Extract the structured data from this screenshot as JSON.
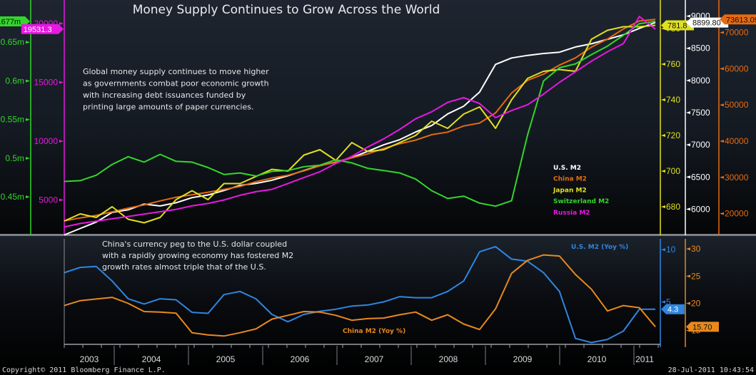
{
  "footer": {
    "copyright": "Copyright© 2011 Bloomberg Finance L.P.",
    "timestamp": "28-Jul-2011 10:43:54"
  },
  "chart_data": [
    {
      "type": "line",
      "title": "Money Supply Continues to Grow Across the World",
      "annotation": "Global money supply continues to move higher as governments combat poor economic growth with increasing debt issuances funded by printing large amounts of paper currencies.",
      "annotation_lines": [
        "Global money supply continues to move higher",
        "as governments combat poor economic growth",
        "with increasing debt issuances funded by",
        "printing large amounts of paper currencies."
      ],
      "legend_position": "bottom-right",
      "x": [
        "2002-04",
        "2002-07",
        "2002-10",
        "2003-01",
        "2003-04",
        "2003-07",
        "2003-10",
        "2004-01",
        "2004-04",
        "2004-07",
        "2004-10",
        "2005-01",
        "2005-04",
        "2005-07",
        "2005-10",
        "2006-01",
        "2006-04",
        "2006-07",
        "2006-10",
        "2007-01",
        "2007-04",
        "2007-07",
        "2007-10",
        "2008-01",
        "2008-04",
        "2008-07",
        "2008-10",
        "2009-01",
        "2009-04",
        "2009-07",
        "2009-10",
        "2010-01",
        "2010-04",
        "2010-07",
        "2010-10",
        "2011-01",
        "2011-04",
        "2011-06"
      ],
      "x_tick_labels": [
        "2003",
        "2004",
        "2005",
        "2006",
        "2007",
        "2008",
        "2009",
        "2010",
        "2011"
      ],
      "axes": [
        {
          "id": "chf",
          "color": "#33d62b",
          "side": "left-outer",
          "label_suffix": "m",
          "ticks": [
            "0.45m",
            "0.5m",
            "0.55m",
            "0.6m",
            "0.65m"
          ],
          "range": [
            0.405,
            0.7
          ],
          "last_value_tag": "0.677m"
        },
        {
          "id": "rub",
          "color": "#e619e0",
          "side": "left-inner",
          "ticks": [
            "5000",
            "10000",
            "15000",
            "20000"
          ],
          "range": [
            2300,
            21700
          ],
          "last_value_tag": "19531.3"
        },
        {
          "id": "jpy",
          "color": "#e0e020",
          "side": "right-1",
          "ticks": [
            "680",
            "700",
            "720",
            "740",
            "760",
            "780"
          ],
          "range": [
            666,
            794
          ],
          "last_value_tag": "781.8"
        },
        {
          "id": "usd",
          "color": "#ffffff",
          "side": "right-2",
          "ticks": [
            "6000",
            "6500",
            "7000",
            "7500",
            "8000",
            "8500",
            "9000"
          ],
          "range": [
            5650,
            9195
          ],
          "last_value_tag": "8899.80"
        },
        {
          "id": "cny",
          "color": "#e66a12",
          "side": "right-3",
          "ticks": [
            "20000",
            "30000",
            "40000",
            "50000",
            "60000",
            "70000"
          ],
          "range": [
            15000,
            78000
          ],
          "last_value_tag": "73613.09"
        }
      ],
      "series": [
        {
          "name": "U.S. M2",
          "axis": "usd",
          "color": "#ffffff",
          "values": [
            5600,
            5700,
            5800,
            5950,
            5990,
            6080,
            6050,
            6100,
            6180,
            6220,
            6290,
            6370,
            6400,
            6450,
            6520,
            6600,
            6680,
            6730,
            6800,
            6900,
            7000,
            7080,
            7200,
            7300,
            7480,
            7600,
            7820,
            8250,
            8350,
            8390,
            8420,
            8440,
            8520,
            8570,
            8640,
            8710,
            8810,
            8900
          ]
        },
        {
          "name": "China M2",
          "axis": "cny",
          "color": "#e66a12",
          "values": [
            18000,
            18800,
            19500,
            20500,
            21500,
            22400,
            23500,
            24500,
            25200,
            25900,
            26700,
            27500,
            28800,
            29800,
            30600,
            31800,
            33200,
            34300,
            35400,
            36500,
            38000,
            39300,
            40300,
            41800,
            42500,
            44200,
            45000,
            47800,
            53300,
            56800,
            58500,
            61000,
            63000,
            66000,
            68200,
            71000,
            73200,
            73613
          ]
        },
        {
          "name": "Japan M2",
          "axis": "jpy",
          "color": "#e0e020",
          "values": [
            672,
            676,
            674,
            680,
            673,
            671,
            674,
            684,
            689,
            684,
            693,
            693,
            697,
            701,
            700,
            709,
            712,
            706,
            716,
            711,
            712,
            716,
            720,
            728,
            724,
            732,
            736,
            724,
            740,
            752,
            756,
            757,
            756,
            774,
            779,
            781,
            781,
            781.8
          ]
        },
        {
          "name": "Switzerland M2",
          "axis": "chf",
          "color": "#33d62b",
          "values": [
            0.47,
            0.471,
            0.478,
            0.492,
            0.502,
            0.495,
            0.505,
            0.496,
            0.495,
            0.488,
            0.479,
            0.481,
            0.477,
            0.483,
            0.484,
            0.489,
            0.491,
            0.498,
            0.494,
            0.487,
            0.484,
            0.481,
            0.473,
            0.458,
            0.448,
            0.451,
            0.442,
            0.438,
            0.445,
            0.53,
            0.6,
            0.617,
            0.622,
            0.634,
            0.645,
            0.659,
            0.674,
            0.677
          ]
        },
        {
          "name": "Russia M2",
          "axis": "rub",
          "color": "#e619e0",
          "values": [
            2700,
            3000,
            3200,
            3400,
            3600,
            3800,
            4000,
            4200,
            4500,
            4700,
            5000,
            5400,
            5700,
            5900,
            6400,
            6900,
            7400,
            8100,
            8700,
            9500,
            10200,
            11000,
            11900,
            12500,
            13300,
            13700,
            13200,
            12000,
            12600,
            13100,
            14000,
            15000,
            15900,
            16800,
            17600,
            18300,
            20600,
            19531
          ]
        }
      ]
    },
    {
      "type": "line",
      "annotation_lines": [
        "China's currency peg to the U.S. dollar coupled",
        "with a rapidly growing economy has fostered M2",
        "growth rates almost triple that of the U.S."
      ],
      "x": [
        "2002-04",
        "2002-07",
        "2002-10",
        "2003-01",
        "2003-04",
        "2003-07",
        "2003-10",
        "2004-01",
        "2004-04",
        "2004-07",
        "2004-10",
        "2005-01",
        "2005-04",
        "2005-07",
        "2005-10",
        "2006-01",
        "2006-04",
        "2006-07",
        "2006-10",
        "2007-01",
        "2007-04",
        "2007-07",
        "2007-10",
        "2008-01",
        "2008-04",
        "2008-07",
        "2008-10",
        "2009-01",
        "2009-04",
        "2009-07",
        "2009-10",
        "2010-01",
        "2010-04",
        "2010-07",
        "2010-10",
        "2011-01",
        "2011-04",
        "2011-06"
      ],
      "x_tick_labels": [
        "2003",
        "2004",
        "2005",
        "2006",
        "2007",
        "2008",
        "2009",
        "2010",
        "2011"
      ],
      "axes": [
        {
          "id": "us",
          "color": "#2f86e0",
          "ticks": [
            "5",
            "10"
          ],
          "range": [
            1.0,
            10.7
          ],
          "last_value_tag": "4.3"
        },
        {
          "id": "cn",
          "color": "#e8891c",
          "ticks": [
            "15",
            "20",
            "25",
            "30"
          ],
          "range": [
            12.6,
            31.2
          ],
          "last_value_tag": "15.70"
        }
      ],
      "series": [
        {
          "name": "U.S. M2 (Yoy %)",
          "axis": "us",
          "color": "#2f86e0",
          "values": [
            7.8,
            8.3,
            8.4,
            7.0,
            5.3,
            4.8,
            5.3,
            5.2,
            4.0,
            3.9,
            5.7,
            6.0,
            5.3,
            3.8,
            3.1,
            3.8,
            4.1,
            4.3,
            4.6,
            4.7,
            5.0,
            5.5,
            5.4,
            5.4,
            6.0,
            7.0,
            9.8,
            10.3,
            9.1,
            8.9,
            7.8,
            6.0,
            1.5,
            1.1,
            1.4,
            2.2,
            4.3,
            4.3
          ]
        },
        {
          "name": "China M2 (Yoy %)",
          "axis": "cn",
          "color": "#e8891c",
          "values": [
            19.6,
            20.5,
            20.8,
            21.1,
            20.0,
            18.5,
            18.4,
            18.2,
            14.6,
            14.2,
            14.0,
            14.6,
            15.3,
            17.1,
            17.8,
            18.5,
            18.4,
            17.8,
            16.9,
            17.2,
            17.3,
            17.9,
            18.4,
            16.9,
            17.9,
            16.2,
            15.2,
            19.0,
            25.5,
            27.9,
            28.9,
            28.7,
            25.3,
            22.6,
            18.6,
            19.6,
            19.2,
            15.7
          ]
        }
      ]
    }
  ]
}
